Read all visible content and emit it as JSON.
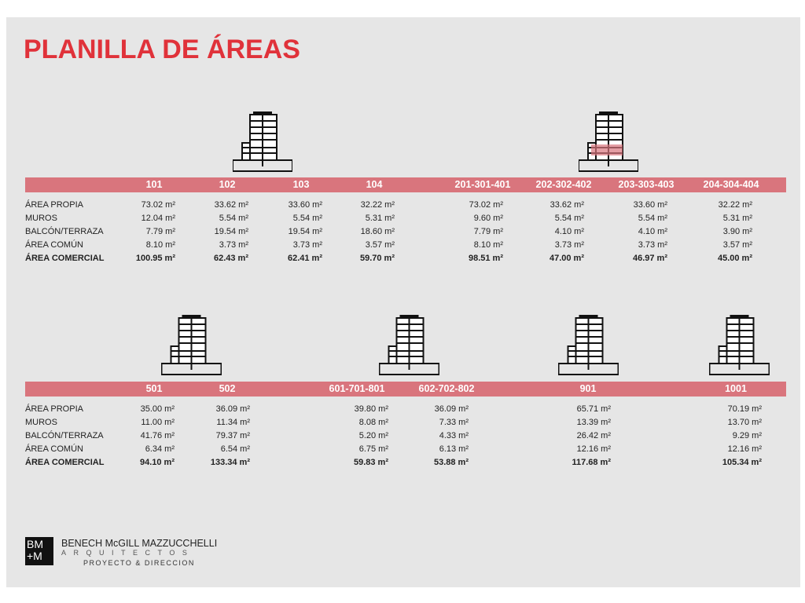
{
  "title": "PLANILLA DE ÁREAS",
  "tables": [
    {
      "columns": [
        "101",
        "102",
        "103",
        "104",
        "201-301-401",
        "202-302-402",
        "203-303-403",
        "204-304-404"
      ],
      "rows": [
        {
          "label": "ÁREA PROPIA",
          "cells": [
            "73.02 m²",
            "33.62 m²",
            "33.60 m²",
            "32.22 m²",
            "73.02 m²",
            "33.62 m²",
            "33.60 m²",
            "32.22 m²"
          ]
        },
        {
          "label": "MUROS",
          "cells": [
            "12.04 m²",
            "5.54 m²",
            "5.54 m²",
            "5.31 m²",
            "9.60 m²",
            "5.54 m²",
            "5.54 m²",
            "5.31 m²"
          ]
        },
        {
          "label": "BALCÓN/TERRAZA",
          "cells": [
            "7.79 m²",
            "19.54 m²",
            "19.54 m²",
            "18.60 m²",
            "7.79 m²",
            "4.10 m²",
            "4.10 m²",
            "3.90 m²"
          ]
        },
        {
          "label": "ÁREA COMÚN",
          "cells": [
            "8.10 m²",
            "3.73 m²",
            "3.73 m²",
            "3.57 m²",
            "8.10 m²",
            "3.73 m²",
            "3.73 m²",
            "3.57 m²"
          ]
        },
        {
          "label": "ÁREA COMERCIAL",
          "cells": [
            "100.95 m²",
            "62.43 m²",
            "62.41 m²",
            "59.70 m²",
            "98.51 m²",
            "47.00 m²",
            "46.97 m²",
            "45.00 m²"
          ]
        }
      ]
    },
    {
      "columns": [
        "501",
        "502",
        "601-701-801",
        "602-702-802",
        "901",
        "1001"
      ],
      "rows": [
        {
          "label": "ÁREA PROPIA",
          "cells": [
            "35.00 m²",
            "36.09 m²",
            "39.80 m²",
            "36.09 m²",
            "65.71 m²",
            "70.19 m²"
          ]
        },
        {
          "label": "MUROS",
          "cells": [
            "11.00 m²",
            "11.34 m²",
            "8.08 m²",
            "7.33 m²",
            "13.39 m²",
            "13.70 m²"
          ]
        },
        {
          "label": "BALCÓN/TERRAZA",
          "cells": [
            "41.76 m²",
            "79.37 m²",
            "5.20 m²",
            "4.33 m²",
            "26.42 m²",
            "9.29 m²"
          ]
        },
        {
          "label": "ÁREA COMÚN",
          "cells": [
            "6.34 m²",
            "6.54 m²",
            "6.75 m²",
            "6.13 m²",
            "12.16 m²",
            "12.16 m²"
          ]
        },
        {
          "label": "ÁREA COMERCIAL",
          "cells": [
            "94.10 m²",
            "133.34 m²",
            "59.83 m²",
            "53.88 m²",
            "117.68 m²",
            "105.34 m²"
          ]
        }
      ]
    }
  ],
  "logo": {
    "mark": [
      "BM",
      "+M"
    ],
    "name": "BENECH McGILL MAZZUCCHELLI",
    "sub": "ARQUITECTOS",
    "tag": "PROYECTO & DIRECCION"
  }
}
